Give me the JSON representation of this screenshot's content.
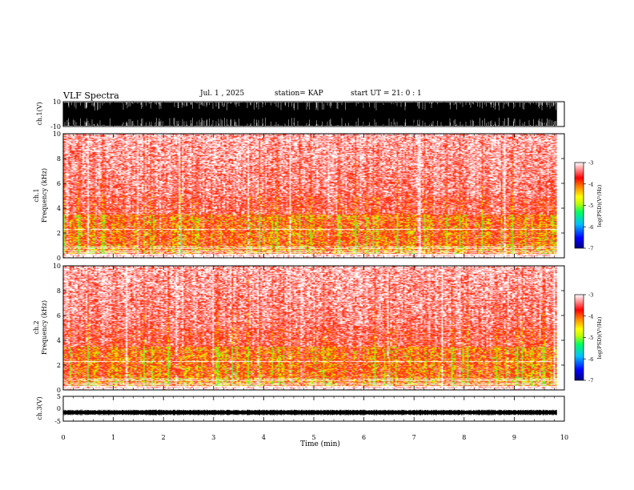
{
  "header": {
    "title": "VLF Spectra",
    "date": "Jul. 1 , 2025",
    "station": "station= KAP",
    "start": "start UT = 21: 0 : 1"
  },
  "colors": {
    "waveform": "#000000",
    "colormap": [
      "#000080",
      "#0000ff",
      "#00c0ff",
      "#00ff60",
      "#c0ff00",
      "#ffff00",
      "#ff8000",
      "#ff0000",
      "#ff9090",
      "#ffffff"
    ]
  },
  "chart_data": [
    {
      "type": "line",
      "name": "ch1-waveform",
      "ylabel": "ch.1(V)",
      "ylim": [
        -10,
        10
      ],
      "ytick_labels": [
        "10",
        "-10"
      ],
      "xlim": [
        0,
        10
      ],
      "signal": "saturated broadband noise filling the full range"
    },
    {
      "type": "heatmap",
      "name": "ch1-spectrogram",
      "ylabel": "ch.1\nFrequency (kHz)",
      "ylim": [
        0,
        10
      ],
      "yticks": [
        0,
        2,
        4,
        6,
        8,
        10
      ],
      "xlim": [
        0,
        10
      ],
      "data_end_min": 9.85,
      "dominant_band_kHz": [
        0.5,
        4
      ],
      "colorbar": {
        "label": "log(PSD)(V²/Hz)",
        "range": [
          -7,
          -3
        ],
        "ticks": [
          -7,
          -6,
          -5,
          -4,
          -3
        ]
      }
    },
    {
      "type": "heatmap",
      "name": "ch2-spectrogram",
      "ylabel": "ch.2\nFrequency (kHz)",
      "ylim": [
        0,
        10
      ],
      "yticks": [
        0,
        2,
        4,
        6,
        8,
        10
      ],
      "xlim": [
        0,
        10
      ],
      "data_end_min": 9.85,
      "dominant_band_kHz": [
        0.5,
        4
      ],
      "colorbar": {
        "label": "log(PSD)(V²/Hz)",
        "range": [
          -7,
          -3
        ],
        "ticks": [
          -7,
          -6,
          -5,
          -4,
          -3
        ]
      }
    },
    {
      "type": "line",
      "name": "ch3-waveform",
      "ylabel": "ch.3(V)",
      "ylim": [
        -5,
        5
      ],
      "yticks": [
        -5,
        0,
        5
      ],
      "ytick_labels": [
        "-5",
        "0",
        "5"
      ],
      "xlim": [
        0,
        10
      ],
      "signal": "steady band around -1.5 V"
    }
  ],
  "xaxis": {
    "label": "Time (min)",
    "ticks": [
      0,
      1,
      2,
      3,
      4,
      5,
      6,
      7,
      8,
      9,
      10
    ]
  }
}
